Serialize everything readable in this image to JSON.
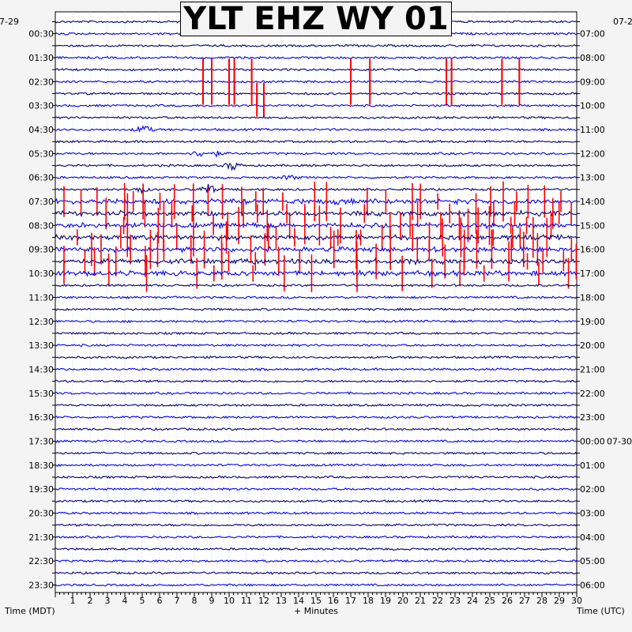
{
  "chart_data": {
    "type": "line",
    "title": "YLT EHZ WY 01",
    "xlabel": "+ Minutes",
    "ylabel_left": "Time (MDT)",
    "ylabel_right": "Time (UTC)",
    "date_left": "07-29",
    "date_right_top": "07-2",
    "date_right_mid": "07-30",
    "xlim": [
      0,
      30
    ],
    "x_ticks": [
      "1",
      "2",
      "3",
      "4",
      "5",
      "6",
      "7",
      "8",
      "9",
      "10",
      "11",
      "12",
      "13",
      "14",
      "15",
      "16",
      "17",
      "18",
      "19",
      "20",
      "21",
      "22",
      "23",
      "24",
      "25",
      "26",
      "27",
      "28",
      "29",
      "30"
    ],
    "left_time_labels": [
      "00:30",
      "01:30",
      "02:30",
      "03:30",
      "04:30",
      "05:30",
      "06:30",
      "07:30",
      "08:30",
      "09:30",
      "10:30",
      "11:30",
      "12:30",
      "13:30",
      "14:30",
      "15:30",
      "16:30",
      "17:30",
      "18:30",
      "19:30",
      "20:30",
      "21:30",
      "22:30",
      "23:30"
    ],
    "right_time_labels": [
      "07:00",
      "08:00",
      "09:00",
      "10:00",
      "11:00",
      "12:00",
      "13:00",
      "14:00",
      "15:00",
      "16:00",
      "17:00",
      "18:00",
      "19:00",
      "20:00",
      "21:00",
      "22:00",
      "23:00",
      "00:00",
      "01:00",
      "02:00",
      "03:00",
      "04:00",
      "05:00",
      "06:00"
    ],
    "num_traces": 48,
    "trace_colors": [
      "#000080",
      "#0000ff"
    ],
    "clip_color": "#ff0000",
    "grid": true,
    "events": [
      {
        "trace": 9,
        "minute": 5.1,
        "amp": 8
      },
      {
        "trace": 11,
        "minute": 8.3,
        "amp": 5
      },
      {
        "trace": 11,
        "minute": 9.3,
        "amp": 3
      },
      {
        "trace": 12,
        "minute": 10.2,
        "amp": 7
      },
      {
        "trace": 13,
        "minute": 13.5,
        "amp": 4
      },
      {
        "trace": 14,
        "minute": 4.9,
        "amp": 5
      },
      {
        "trace": 14,
        "minute": 8.8,
        "amp": 9
      }
    ],
    "clipped_segments": [
      {
        "trace": 4,
        "minutes": [
          8.5,
          9.0,
          10.0,
          10.3,
          11.3,
          17.0,
          18.1,
          22.5,
          22.8,
          25.7,
          26.7
        ]
      },
      {
        "trace": 5,
        "minutes": [
          8.5,
          9.0,
          10.0,
          10.3,
          11.3,
          17.0,
          18.1,
          22.5,
          22.8,
          25.7,
          26.7
        ]
      },
      {
        "trace": 6,
        "minutes": [
          8.5,
          9.0,
          10.0,
          10.3,
          11.3,
          11.6,
          12.0,
          17.0,
          18.1,
          22.5,
          22.8,
          25.7,
          26.7
        ]
      },
      {
        "trace": 7,
        "minutes": [
          11.6,
          12.0
        ]
      }
    ],
    "busy_traces": [
      15,
      16,
      17,
      18,
      19,
      20,
      21
    ]
  }
}
